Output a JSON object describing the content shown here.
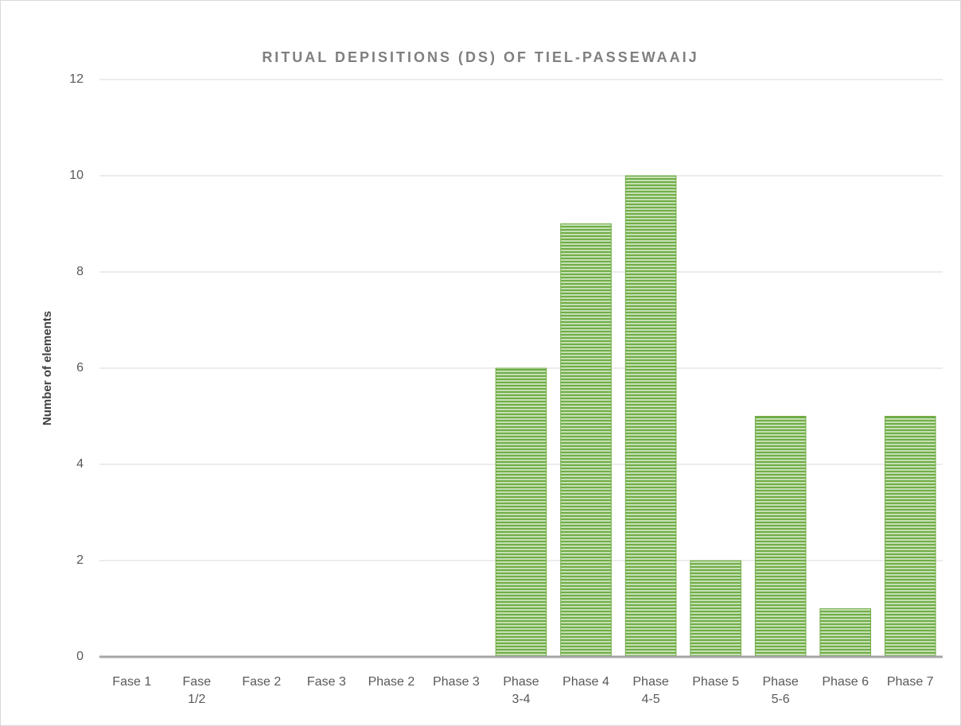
{
  "chart_data": {
    "type": "bar",
    "title": "RITUAL DEPISITIONS (DS) OF TIEL-PASSEWAAIJ",
    "y_label": "Number of elements",
    "categories": [
      "Fase 1",
      "Fase 1/2",
      "Fase 2",
      "Fase 3",
      "Phase 2",
      "Phase 3",
      "Phase 3-4",
      "Phase 4",
      "Phase 4-5",
      "Phase 5",
      "Phase 5-6",
      "Phase 6",
      "Phase 7"
    ],
    "values": [
      0,
      0,
      0,
      0,
      0,
      0,
      6,
      9,
      10,
      2,
      5,
      1,
      5
    ],
    "color": "#70ad47",
    "ylim": [
      0,
      12
    ],
    "yticks": [
      0,
      2,
      4,
      6,
      8,
      10,
      12
    ],
    "grid": true
  }
}
